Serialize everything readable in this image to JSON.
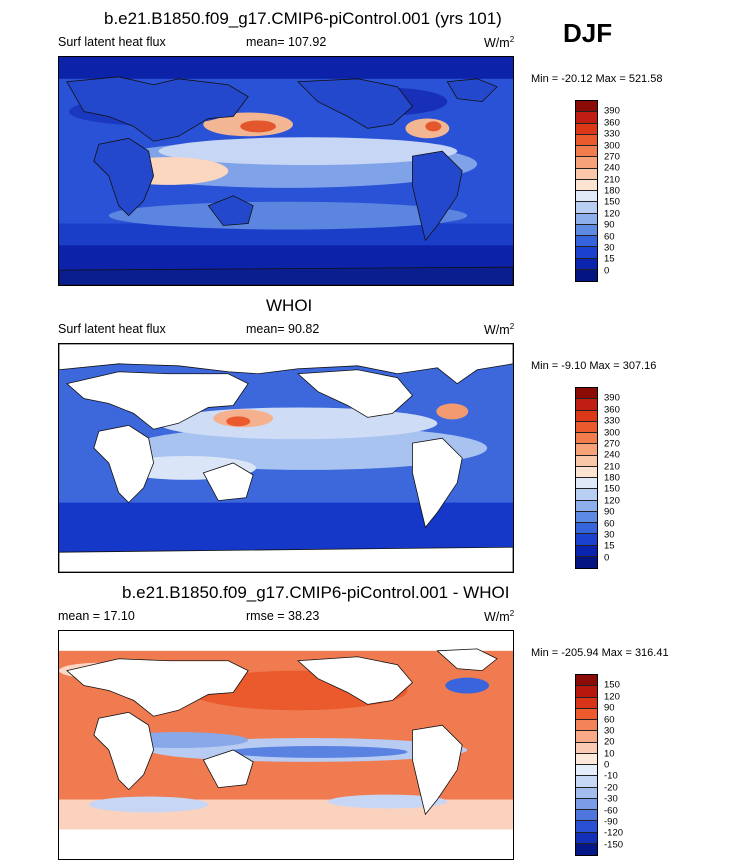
{
  "season": "DJF",
  "panels": [
    {
      "title": "b.e21.B1850.f09_g17.CMIP6-piControl.001 (yrs 101)",
      "left_label": "Surf latent heat flux",
      "center_label": "mean= 107.92",
      "unit": "W/m",
      "unit_sup": "2",
      "stats": "Min = -20.12 Max = 521.58",
      "colorbar_labels": [
        "390",
        "360",
        "330",
        "300",
        "270",
        "240",
        "210",
        "180",
        "150",
        "120",
        "90",
        "60",
        "30",
        "15",
        "0"
      ],
      "colorbar_colors": [
        "#8b0b06",
        "#c01e12",
        "#dc3818",
        "#ea5a2c",
        "#f37c4c",
        "#f8a27a",
        "#fac7a8",
        "#fde4d2",
        "#dfe9f8",
        "#b9cef3",
        "#8dafeb",
        "#5d8ae3",
        "#3564dc",
        "#1a42cf",
        "#0a24b0",
        "#041480"
      ]
    },
    {
      "title": "WHOI",
      "left_label": "Surf latent heat flux",
      "center_label": "mean=  90.82",
      "unit": "W/m",
      "unit_sup": "2",
      "stats": "Min =  -9.10 Max = 307.16",
      "colorbar_labels": [
        "390",
        "360",
        "330",
        "300",
        "270",
        "240",
        "210",
        "180",
        "150",
        "120",
        "90",
        "60",
        "30",
        "15",
        "0"
      ],
      "colorbar_colors": [
        "#8b0b06",
        "#c01e12",
        "#dc3818",
        "#ea5a2c",
        "#f37c4c",
        "#f8a27a",
        "#fac7a8",
        "#fde4d2",
        "#dfe9f8",
        "#b9cef3",
        "#8dafeb",
        "#5d8ae3",
        "#3564dc",
        "#1a42cf",
        "#0a24b0",
        "#041480"
      ]
    },
    {
      "title": "b.e21.B1850.f09_g17.CMIP6-piControl.001 - WHOI",
      "left_label": "mean =  17.10",
      "center_label": "rmse =  38.23",
      "unit": "W/m",
      "unit_sup": "2",
      "stats": "Min = -205.94 Max = 316.41",
      "colorbar_labels": [
        "150",
        "120",
        "90",
        "60",
        "30",
        "20",
        "10",
        "0",
        "-10",
        "-20",
        "-30",
        "-60",
        "-90",
        "-120",
        "-150"
      ],
      "colorbar_colors": [
        "#8b0b06",
        "#b8170e",
        "#d83418",
        "#ec5a2e",
        "#f5835a",
        "#f9a888",
        "#fbcab4",
        "#fde8dc",
        "#e6eefb",
        "#c7d8f5",
        "#a3bdee",
        "#7b9ce6",
        "#4f76dd",
        "#2a50d3",
        "#1430b8",
        "#061888"
      ]
    }
  ]
}
